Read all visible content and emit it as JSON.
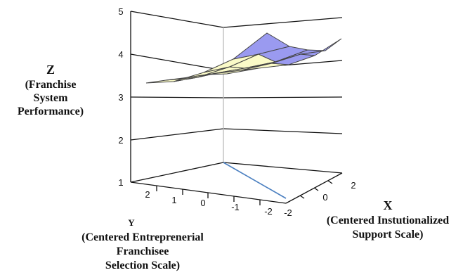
{
  "chart_data": {
    "type": "surface",
    "z_axis": {
      "letter": "Z",
      "label_lines": [
        "(Franchise",
        "System",
        "Performance)"
      ],
      "range": [
        1,
        5
      ],
      "ticks": [
        "1",
        "2",
        "3",
        "4",
        "5"
      ]
    },
    "y_axis": {
      "letter": "Y",
      "label_lines": [
        "(Centered Entreprenerial",
        "Franchisee",
        "Selection Scale)"
      ],
      "ticks": [
        "2",
        "1",
        "0",
        "-1",
        "-2"
      ]
    },
    "x_axis": {
      "letter": "X",
      "label_lines": [
        "(Centered Instutionalized",
        "Support Scale)"
      ],
      "ticks": [
        "-2",
        "0",
        "2"
      ]
    },
    "grid": true,
    "surface_colors": {
      "top": "#9a9af0",
      "bottom": "#fbfbc8",
      "edge": "#444444"
    }
  }
}
